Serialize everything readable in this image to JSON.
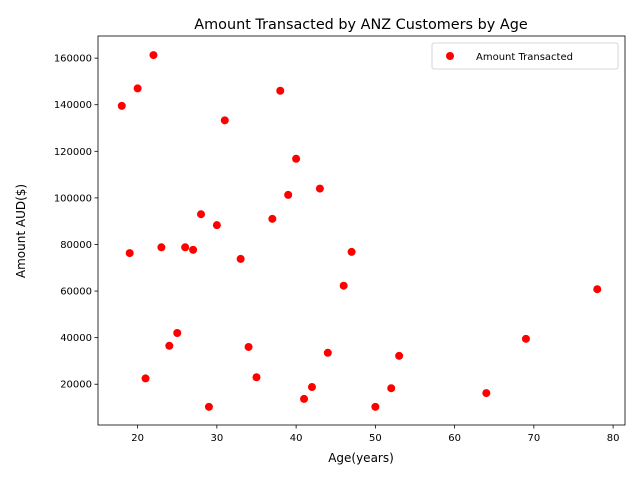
{
  "chart_data": {
    "type": "scatter",
    "title": "Amount Transacted by ANZ Customers by Age",
    "xlabel": "Age(years)",
    "ylabel": "Amount AUD($)",
    "xlim": [
      15,
      81.5
    ],
    "ylim": [
      2500,
      169500
    ],
    "xticks": [
      20,
      30,
      40,
      50,
      60,
      70,
      80
    ],
    "yticks": [
      20000,
      40000,
      60000,
      80000,
      100000,
      120000,
      140000,
      160000
    ],
    "legend": {
      "position": "top-right",
      "entries": [
        "Amount Transacted"
      ]
    },
    "grid": false,
    "series": [
      {
        "name": "Amount Transacted",
        "color": "#ff0000",
        "points": [
          {
            "x": 18,
            "y": 139500
          },
          {
            "x": 19,
            "y": 76300
          },
          {
            "x": 20,
            "y": 147000
          },
          {
            "x": 21,
            "y": 22500
          },
          {
            "x": 22,
            "y": 161300
          },
          {
            "x": 23,
            "y": 78800
          },
          {
            "x": 24,
            "y": 36500
          },
          {
            "x": 25,
            "y": 42000
          },
          {
            "x": 26,
            "y": 78800
          },
          {
            "x": 27,
            "y": 77700
          },
          {
            "x": 28,
            "y": 93000
          },
          {
            "x": 29,
            "y": 10300
          },
          {
            "x": 30,
            "y": 88300
          },
          {
            "x": 31,
            "y": 133300
          },
          {
            "x": 33,
            "y": 73800
          },
          {
            "x": 34,
            "y": 36000
          },
          {
            "x": 35,
            "y": 23000
          },
          {
            "x": 37,
            "y": 91000
          },
          {
            "x": 38,
            "y": 146000
          },
          {
            "x": 39,
            "y": 101300
          },
          {
            "x": 40,
            "y": 116800
          },
          {
            "x": 41,
            "y": 13700
          },
          {
            "x": 42,
            "y": 18800
          },
          {
            "x": 43,
            "y": 104000
          },
          {
            "x": 44,
            "y": 33500
          },
          {
            "x": 46,
            "y": 62300
          },
          {
            "x": 47,
            "y": 76800
          },
          {
            "x": 50,
            "y": 10300
          },
          {
            "x": 52,
            "y": 18300
          },
          {
            "x": 53,
            "y": 32200
          },
          {
            "x": 64,
            "y": 16200
          },
          {
            "x": 69,
            "y": 39500
          },
          {
            "x": 78,
            "y": 60800
          }
        ]
      }
    ]
  }
}
